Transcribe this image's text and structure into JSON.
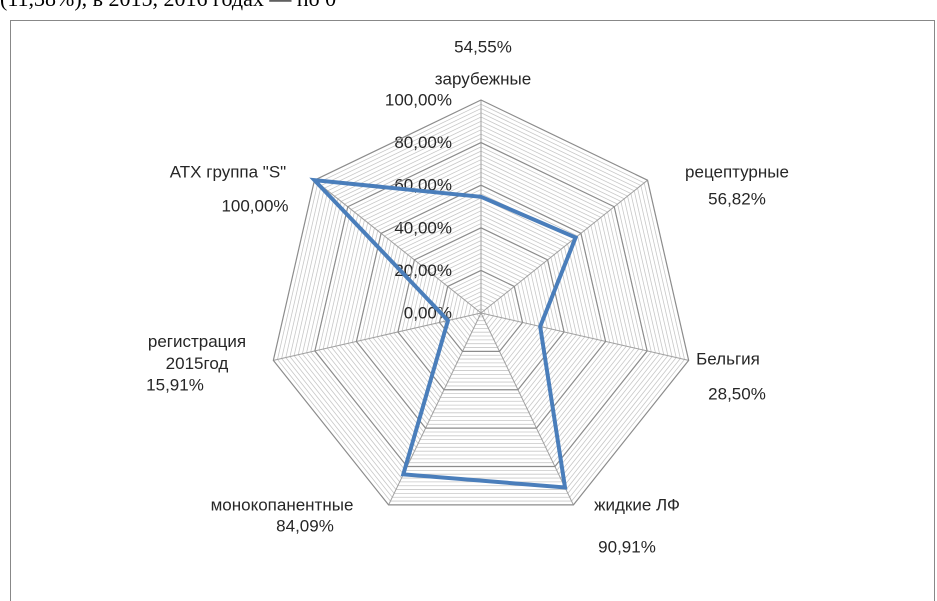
{
  "page_text": "(11,38%), в 2015, 2016 годах — по 0",
  "chart_data": {
    "type": "radar",
    "categories": [
      "зарубежные",
      "рецептурные",
      "Бельгия",
      "жидкие ЛФ",
      "монокопанентные",
      "регистрация 2015год",
      "АТХ группа \"S\""
    ],
    "series": [
      {
        "color": "#4a7ebb",
        "values": [
          54.55,
          56.82,
          28.5,
          90.91,
          84.09,
          15.91,
          100
        ],
        "value_labels": [
          "54,55%",
          "56,82%",
          "28,50%",
          "90,91%",
          "84,09%",
          "15,91%",
          "100,00%"
        ]
      }
    ],
    "ylim": [
      0,
      100
    ],
    "yticks": [
      {
        "value": 0,
        "label": "0,00%"
      },
      {
        "value": 20,
        "label": "20,00%"
      },
      {
        "value": 40,
        "label": "40,00%"
      },
      {
        "value": 60,
        "label": "60,00%"
      },
      {
        "value": 80,
        "label": "80,00%"
      },
      {
        "value": 100,
        "label": "100,00%"
      }
    ],
    "grid": true
  }
}
